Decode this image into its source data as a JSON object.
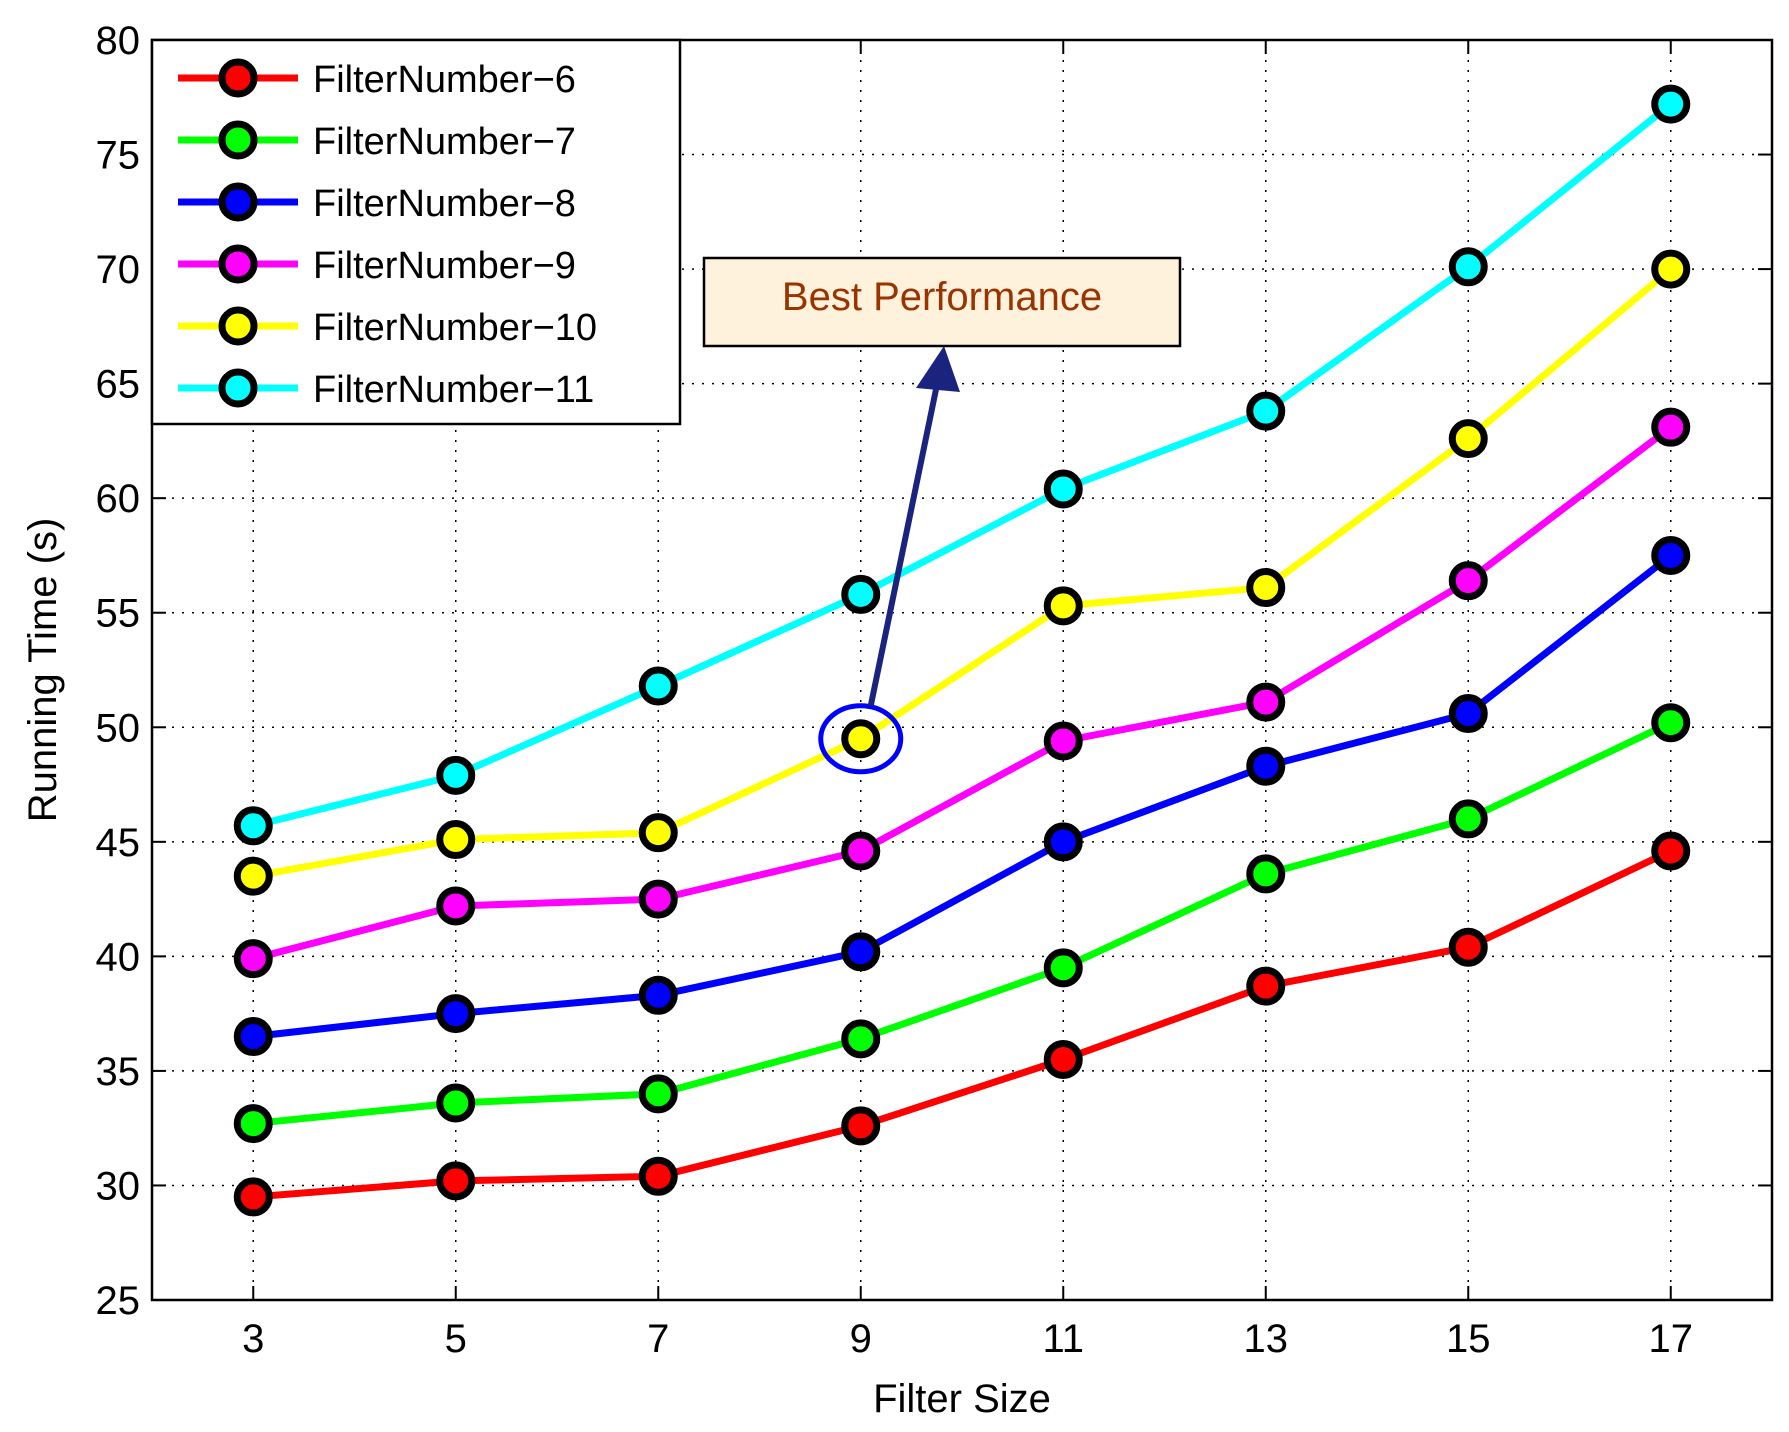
{
  "chart_data": {
    "type": "line",
    "title": "",
    "xlabel": "Filter Size",
    "ylabel": "Running Time (s)",
    "x": [
      3,
      5,
      7,
      9,
      11,
      13,
      15,
      17
    ],
    "xticks": [
      3,
      5,
      7,
      9,
      11,
      13,
      15,
      17
    ],
    "xlim": [
      2,
      18
    ],
    "ylim": [
      25,
      80
    ],
    "yticks": [
      25,
      30,
      35,
      40,
      45,
      50,
      55,
      60,
      65,
      70,
      75,
      80
    ],
    "grid": true,
    "legend_position": "top-left",
    "series": [
      {
        "name": "FilterNumber−6",
        "color": "#ff0000",
        "values": [
          29.5,
          30.2,
          30.4,
          32.6,
          35.5,
          38.7,
          40.4,
          44.6
        ]
      },
      {
        "name": "FilterNumber−7",
        "color": "#00ff00",
        "values": [
          32.7,
          33.6,
          34.0,
          36.4,
          39.5,
          43.6,
          46.0,
          50.2
        ]
      },
      {
        "name": "FilterNumber−8",
        "color": "#0000ff",
        "values": [
          36.5,
          37.5,
          38.3,
          40.2,
          45.0,
          48.3,
          50.6,
          57.5
        ]
      },
      {
        "name": "FilterNumber−9",
        "color": "#ff00ff",
        "values": [
          39.9,
          42.2,
          42.5,
          44.6,
          49.4,
          51.1,
          56.4,
          63.1
        ]
      },
      {
        "name": "FilterNumber−10",
        "color": "#ffff00",
        "values": [
          43.5,
          45.1,
          45.4,
          49.5,
          55.3,
          56.1,
          62.6,
          70.0
        ]
      },
      {
        "name": "FilterNumber−11",
        "color": "#00ffff",
        "values": [
          45.7,
          47.9,
          51.8,
          55.8,
          60.4,
          63.8,
          70.1,
          77.2
        ]
      }
    ],
    "annotations": [
      {
        "text": "Best Performance",
        "target_x": 9,
        "target_y": 49.5,
        "text_color": "#993300",
        "box_fill": "#fff2dc",
        "arrow_color": "#1a237e",
        "highlight_color": "#0000ff"
      }
    ]
  }
}
